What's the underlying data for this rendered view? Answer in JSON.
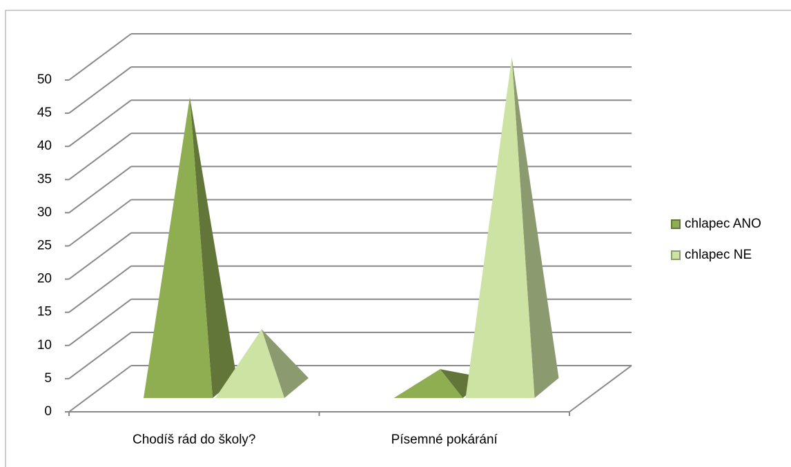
{
  "chart_data": {
    "type": "pyramid3d",
    "categories": [
      "Chodíš rád do školy?",
      "Písemné pokárání"
    ],
    "series": [
      {
        "name": "chlapec ANO",
        "color": "#8fae52",
        "values": [
          44,
          3
        ]
      },
      {
        "name": "chlapec NE",
        "color": "#cde3a3",
        "values": [
          9,
          50
        ]
      }
    ],
    "ylim": [
      0,
      50
    ],
    "yticks": [
      0,
      5,
      10,
      15,
      20,
      25,
      30,
      35,
      40,
      45,
      50
    ],
    "grid": true,
    "legend": "right"
  }
}
